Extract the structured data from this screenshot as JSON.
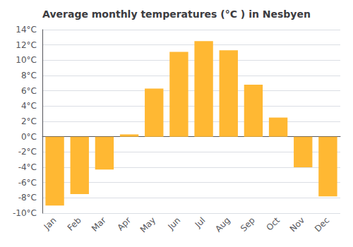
{
  "chart_data": {
    "type": "bar",
    "title": "Average monthly temperatures (°C ) in Nesbyen",
    "categories": [
      "Jan",
      "Feb",
      "Mar",
      "Apr",
      "May",
      "Jun",
      "Jul",
      "Aug",
      "Sep",
      "Oct",
      "Nov",
      "Dec"
    ],
    "values": [
      -9.0,
      -7.5,
      -4.3,
      0.3,
      6.3,
      11.1,
      12.5,
      11.3,
      6.8,
      2.5,
      -4.0,
      -7.8
    ],
    "color": "#FFB833",
    "ylim": [
      -10,
      14
    ],
    "yticks": [
      {
        "value": -10,
        "label": "-10°C"
      },
      {
        "value": -8,
        "label": "-8°C"
      },
      {
        "value": -6,
        "label": "-6°C"
      },
      {
        "value": -4,
        "label": "-4°C"
      },
      {
        "value": -2,
        "label": "-2°C"
      },
      {
        "value": 0,
        "label": "0°C"
      },
      {
        "value": 2,
        "label": "2°C"
      },
      {
        "value": 4,
        "label": "4°C"
      },
      {
        "value": 6,
        "label": "6°C"
      },
      {
        "value": 8,
        "label": "8°C"
      },
      {
        "value": 10,
        "label": "10°C"
      },
      {
        "value": 12,
        "label": "12°C"
      },
      {
        "value": 14,
        "label": "14°C"
      }
    ],
    "grid": true
  }
}
